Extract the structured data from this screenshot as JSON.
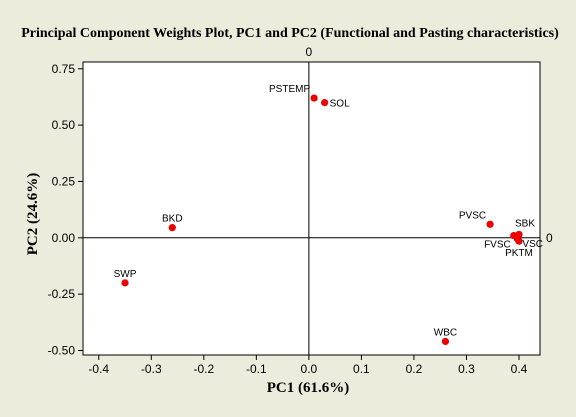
{
  "chart_data": {
    "type": "scatter",
    "title": "Principal Component Weights Plot, PC1 and PC2 (Functional and Pasting characteristics)",
    "xlabel": "PC1 (61.6%)",
    "ylabel": "PC2 (24.6%)",
    "xlim": [
      -0.43,
      0.44
    ],
    "ylim": [
      -0.52,
      0.78
    ],
    "x_ticks": [
      -0.4,
      -0.3,
      -0.2,
      -0.1,
      0.0,
      0.1,
      0.2,
      0.3,
      0.4
    ],
    "x_tick_labels": [
      "-0.4",
      "-0.3",
      "-0.2",
      "-0.1",
      "0.0",
      "0.1",
      "0.2",
      "0.3",
      "0.4"
    ],
    "y_ticks": [
      -0.5,
      -0.25,
      0.0,
      0.25,
      0.5,
      0.75
    ],
    "y_tick_labels": [
      "-0.50",
      "-0.25",
      "0.00",
      "0.25",
      "0.50",
      "0.75"
    ],
    "reference_lines": {
      "x": {
        "value": 0,
        "label": "0"
      },
      "y": {
        "value": 0,
        "label": "0"
      }
    },
    "grid": false,
    "marker_color": "#ee0000",
    "background_color": "#ececdc",
    "plot_background_color": "#ffffff",
    "points": [
      {
        "label": "PSTEMP",
        "x": 0.01,
        "y": 0.62,
        "label_pos": "left-above"
      },
      {
        "label": "SOL",
        "x": 0.03,
        "y": 0.6,
        "label_pos": "right"
      },
      {
        "label": "BKD",
        "x": -0.26,
        "y": 0.045,
        "label_pos": "above"
      },
      {
        "label": "SWP",
        "x": -0.35,
        "y": -0.2,
        "label_pos": "above"
      },
      {
        "label": "PVSC",
        "x": 0.345,
        "y": 0.06,
        "label_pos": "left-above"
      },
      {
        "label": "SBK",
        "x": 0.4,
        "y": 0.015,
        "label_pos": "right-above"
      },
      {
        "label": "FVSC",
        "x": 0.39,
        "y": 0.01,
        "label_pos": "left-below"
      },
      {
        "label": "VSC",
        "x": 0.397,
        "y": -0.005,
        "label_pos": "right-below"
      },
      {
        "label": "PKTM",
        "x": 0.4,
        "y": -0.015,
        "label_pos": "below"
      },
      {
        "label": "WBC",
        "x": 0.26,
        "y": -0.46,
        "label_pos": "above"
      }
    ]
  }
}
